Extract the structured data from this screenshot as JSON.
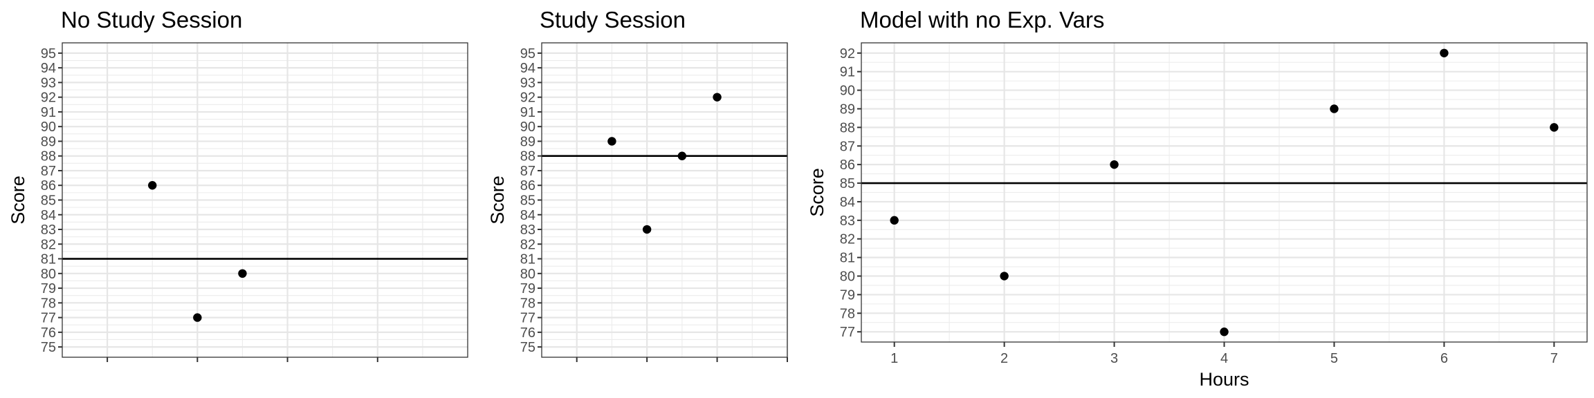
{
  "chart_data": [
    {
      "type": "scatter",
      "title": "No Study Session",
      "xlabel": "",
      "ylabel": "Score",
      "xlim": [
        0.5,
        5.0
      ],
      "ylim": [
        74.3,
        95.7
      ],
      "x_major_ticks": [
        1,
        2,
        3,
        4
      ],
      "x_tick_labels": [
        "",
        "",
        "",
        ""
      ],
      "y_ticks": [
        75,
        76,
        77,
        78,
        79,
        80,
        81,
        82,
        83,
        84,
        85,
        86,
        87,
        88,
        89,
        90,
        91,
        92,
        93,
        94,
        95
      ],
      "grid": true,
      "points": [
        {
          "x": 1.5,
          "y": 86
        },
        {
          "x": 2.0,
          "y": 77
        },
        {
          "x": 2.5,
          "y": 80
        }
      ],
      "hline": 81
    },
    {
      "type": "scatter",
      "title": "Study Session",
      "xlabel": "",
      "ylabel": "Score",
      "xlim": [
        0.5,
        4.0
      ],
      "ylim": [
        74.3,
        95.7
      ],
      "x_major_ticks": [
        1,
        2,
        3,
        4
      ],
      "x_tick_labels": [
        "",
        "",
        "",
        ""
      ],
      "y_ticks": [
        75,
        76,
        77,
        78,
        79,
        80,
        81,
        82,
        83,
        84,
        85,
        86,
        87,
        88,
        89,
        90,
        91,
        92,
        93,
        94,
        95
      ],
      "grid": true,
      "points": [
        {
          "x": 1.5,
          "y": 89
        },
        {
          "x": 2.0,
          "y": 83
        },
        {
          "x": 2.5,
          "y": 88
        },
        {
          "x": 3.0,
          "y": 92
        }
      ],
      "hline": 88
    },
    {
      "type": "scatter",
      "title": "Model with no Exp. Vars",
      "xlabel": "Hours",
      "ylabel": "Score",
      "xlim": [
        0.7,
        7.3
      ],
      "ylim": [
        76.45,
        92.55
      ],
      "x_major_ticks": [
        1,
        2,
        3,
        4,
        5,
        6,
        7
      ],
      "x_tick_labels": [
        "1",
        "2",
        "3",
        "4",
        "5",
        "6",
        "7"
      ],
      "y_ticks": [
        77,
        78,
        79,
        80,
        81,
        82,
        83,
        84,
        85,
        86,
        87,
        88,
        89,
        90,
        91,
        92
      ],
      "grid": true,
      "points": [
        {
          "x": 1,
          "y": 83
        },
        {
          "x": 2,
          "y": 80
        },
        {
          "x": 3,
          "y": 86
        },
        {
          "x": 4,
          "y": 77
        },
        {
          "x": 5,
          "y": 89
        },
        {
          "x": 6,
          "y": 92
        },
        {
          "x": 7,
          "y": 88
        }
      ],
      "hline": 85
    }
  ]
}
